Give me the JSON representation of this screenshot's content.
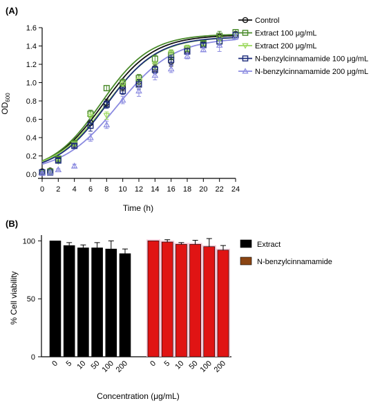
{
  "chart_data": [
    {
      "panel": "(A)",
      "type": "line",
      "xlabel": "Time (h)",
      "ylabel_main": "OD",
      "ylabel_sub": "600",
      "xlim": [
        0,
        24
      ],
      "ylim": [
        0,
        1.6
      ],
      "xticks": [
        "0",
        "2",
        "4",
        "6",
        "8",
        "10",
        "12",
        "14",
        "16",
        "18",
        "20",
        "22",
        "24"
      ],
      "yticks": [
        "0.0",
        "0.2",
        "0.4",
        "0.6",
        "0.8",
        "1.0",
        "1.2",
        "1.4",
        "1.6"
      ],
      "grid": false,
      "legend_position": "top-right",
      "x": [
        0,
        1,
        2,
        4,
        6,
        8,
        10,
        12,
        14,
        16,
        18,
        20,
        22,
        24
      ],
      "series": [
        {
          "name": "Control",
          "color": "#111111",
          "marker": "circle",
          "values": [
            0.03,
            0.04,
            0.16,
            0.33,
            0.56,
            0.78,
            0.95,
            1.01,
            1.16,
            1.23,
            1.35,
            1.42,
            1.5,
            1.53
          ],
          "errors": [
            0.01,
            0.01,
            0.02,
            0.02,
            0.06,
            0.04,
            0.04,
            0.05,
            0.04,
            0.05,
            0.03,
            0.02,
            0.04,
            0.02
          ],
          "fit": [
            1.52,
            7.6,
            0.32,
            0.02
          ]
        },
        {
          "name": "Extract 100 μg/mL",
          "color": "#4a8a2a",
          "marker": "square",
          "values": [
            0.02,
            0.03,
            0.17,
            0.34,
            0.66,
            0.94,
            1.0,
            1.05,
            1.26,
            1.3,
            1.37,
            1.43,
            1.51,
            1.55
          ],
          "errors": [
            0.01,
            0.01,
            0.02,
            0.02,
            0.04,
            0.03,
            0.04,
            0.04,
            0.04,
            0.05,
            0.03,
            0.02,
            0.05,
            0.03
          ],
          "fit": [
            1.53,
            7.3,
            0.33,
            0.02
          ]
        },
        {
          "name": "Extract 200 μg/mL",
          "color": "#9ad85a",
          "marker": "triangle-down",
          "values": [
            0.02,
            0.03,
            0.14,
            0.33,
            0.63,
            0.64,
            0.98,
            1.02,
            1.19,
            1.32,
            1.38,
            1.41,
            1.47,
            1.52
          ],
          "errors": [
            0.01,
            0.01,
            0.02,
            0.02,
            0.04,
            0.04,
            0.04,
            0.04,
            0.04,
            0.04,
            0.03,
            0.02,
            0.04,
            0.02
          ],
          "fit": [
            1.5,
            7.9,
            0.31,
            0.02
          ]
        },
        {
          "name": "N-benzylcinnamamide 100 μg/mL",
          "color": "#1a2a7a",
          "marker": "square",
          "values": [
            0.02,
            0.02,
            0.15,
            0.31,
            0.53,
            0.76,
            0.91,
            0.98,
            1.14,
            1.25,
            1.34,
            1.41,
            1.45,
            1.52
          ],
          "errors": [
            0.01,
            0.01,
            0.02,
            0.02,
            0.06,
            0.04,
            0.04,
            0.05,
            0.04,
            0.05,
            0.03,
            0.02,
            0.04,
            0.03
          ],
          "fit": [
            1.5,
            8.0,
            0.32,
            0.02
          ]
        },
        {
          "name": "N-benzylcinnamamide 200 μg/mL",
          "color": "#8a8ae0",
          "marker": "triangle-up",
          "values": [
            0.01,
            0.02,
            0.05,
            0.09,
            0.4,
            0.54,
            0.81,
            0.91,
            1.08,
            1.15,
            1.29,
            1.36,
            1.41,
            1.5
          ],
          "errors": [
            0.01,
            0.01,
            0.01,
            0.02,
            0.04,
            0.04,
            0.04,
            0.06,
            0.05,
            0.04,
            0.03,
            0.02,
            0.07,
            0.03
          ],
          "fit": [
            1.49,
            9.4,
            0.29,
            0.02
          ]
        }
      ]
    },
    {
      "panel": "(B)",
      "type": "bar",
      "xlabel": "Concentration (μg/mL)",
      "ylabel": "% Cell viability",
      "ylim": [
        0,
        105
      ],
      "yticks": [
        "0",
        "50",
        "100"
      ],
      "grid": false,
      "legend_position": "top-right",
      "groups": [
        {
          "name": "Extract",
          "color": "#000000",
          "legend_color": "#000000",
          "categories": [
            "0",
            "5",
            "10",
            "50",
            "100",
            "200"
          ],
          "values": [
            100,
            96,
            94,
            94,
            93,
            89
          ],
          "errors": [
            0,
            2.5,
            2.5,
            4.5,
            7,
            4
          ]
        },
        {
          "name": "N-benzylcinnamamide",
          "color": "#e01414",
          "legend_color": "#8b4513",
          "categories": [
            "0",
            "5",
            "10",
            "50",
            "100",
            "200"
          ],
          "values": [
            100,
            99,
            97,
            97,
            95,
            92
          ],
          "errors": [
            0,
            2,
            1.5,
            3.5,
            7,
            4
          ]
        }
      ]
    }
  ]
}
